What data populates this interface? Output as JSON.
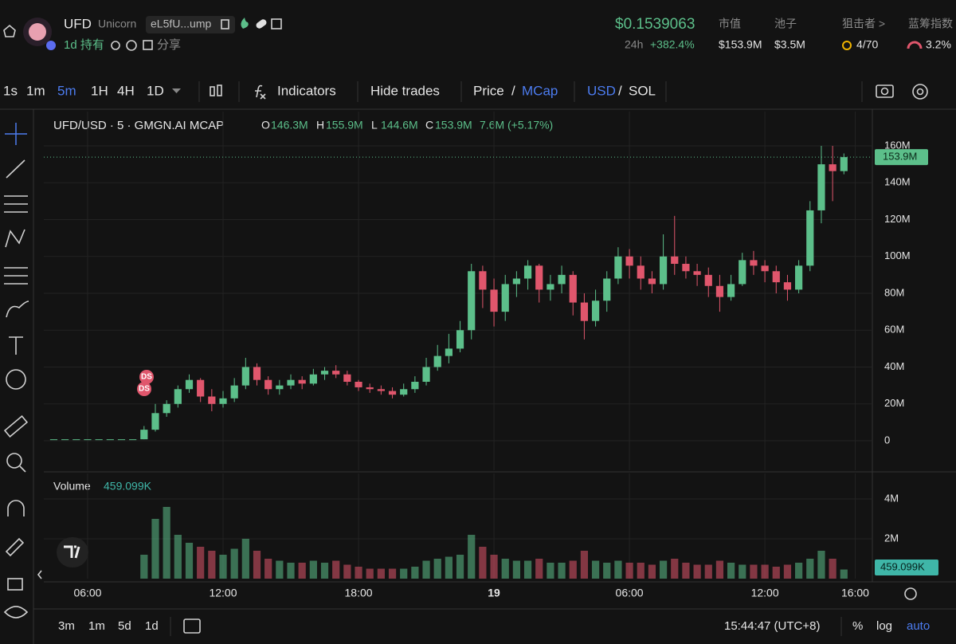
{
  "chart_data": {
    "type": "candlestick",
    "title": "UFD/USD · 5 · GMGN.AI MCAP",
    "ohlc": [
      {
        "key": "O",
        "value": "146.3M"
      },
      {
        "key": "H",
        "value": "155.9M"
      },
      {
        "key": "L",
        "value": "144.6M"
      },
      {
        "key": "C",
        "value": "153.9M"
      }
    ],
    "change": "7.6M (+5.17%)",
    "up_color": "#5cbf8a",
    "down_color": "#e0566c",
    "xlim": [
      4.06,
      40.76
    ],
    "xticks": [
      {
        "value": 6,
        "label": "06:00"
      },
      {
        "value": 12,
        "label": "12:00"
      },
      {
        "value": 18,
        "label": "18:00"
      },
      {
        "value": 24,
        "label": "19"
      },
      {
        "value": 30,
        "label": "06:00"
      },
      {
        "value": 36,
        "label": "12:00"
      },
      {
        "value": 40,
        "label": "16:00"
      }
    ],
    "ylim": [
      -16,
      178.6
    ],
    "yticks": [
      0,
      {
        "value": 20,
        "label": "20M"
      },
      {
        "value": 40,
        "label": "40M"
      },
      {
        "value": 60,
        "label": "60M"
      },
      {
        "value": 80,
        "label": "80M"
      },
      {
        "value": 100,
        "label": "100M"
      },
      {
        "value": 120,
        "label": "120M"
      },
      {
        "value": 140,
        "label": "140M"
      },
      {
        "value": 160,
        "label": "160M"
      }
    ],
    "grid": true,
    "price_tag": "153.9M",
    "volume_title": "Volume",
    "volume_tag": "459.099K",
    "volume_ylim": [
      0,
      5.04
    ],
    "volume_yticks": [
      {
        "value": 2,
        "label": "2M"
      },
      {
        "value": 4,
        "label": "4M"
      }
    ],
    "x": [
      4.5,
      5,
      5.5,
      6,
      6.5,
      7,
      7.5,
      8,
      8.5,
      9,
      9.5,
      10,
      10.5,
      11,
      11.5,
      12,
      12.5,
      13,
      13.5,
      14,
      14.5,
      15,
      15.5,
      16,
      16.5,
      17,
      17.5,
      18,
      18.5,
      19,
      19.5,
      20,
      20.5,
      21,
      21.5,
      22,
      22.5,
      23,
      23.5,
      24,
      24.5,
      25,
      25.5,
      26,
      26.5,
      27,
      27.5,
      28,
      28.5,
      29,
      29.5,
      30,
      30.5,
      31,
      31.5,
      32,
      32.5,
      33,
      33.5,
      34,
      34.5,
      35,
      35.5,
      36,
      36.5,
      37,
      37.5,
      38,
      38.5,
      39,
      39.5
    ],
    "open": [
      0.8,
      0.8,
      0.8,
      0.8,
      0.8,
      0.8,
      0.8,
      0.8,
      0.8,
      6,
      15,
      20,
      28,
      33,
      24,
      20,
      23,
      30,
      40,
      33,
      28,
      30,
      33,
      31,
      36,
      38,
      36,
      32,
      29,
      28,
      27,
      25,
      28,
      32,
      40,
      46,
      50,
      60,
      92,
      82,
      70,
      85,
      88,
      95,
      82,
      85,
      90,
      75,
      65,
      76,
      88,
      100,
      95,
      88,
      85,
      100,
      96,
      92,
      90,
      84,
      78,
      85,
      98,
      95,
      92,
      86,
      82,
      95,
      125,
      150,
      146.3
    ],
    "high": [
      0.8,
      0.8,
      0.8,
      0.8,
      0.8,
      0.8,
      0.8,
      0.8,
      8,
      20,
      22,
      30,
      36,
      34,
      28,
      27,
      34,
      45,
      42,
      35,
      33,
      36,
      35,
      39,
      40,
      41,
      38,
      33,
      31,
      30,
      29,
      31,
      35,
      45,
      52,
      58,
      65,
      96,
      95,
      88,
      90,
      92,
      98,
      96,
      90,
      95,
      92,
      80,
      82,
      92,
      105,
      104,
      100,
      92,
      112,
      122,
      100,
      96,
      94,
      90,
      90,
      102,
      103,
      98,
      95,
      90,
      98,
      130,
      160,
      160,
      155.9
    ],
    "low": [
      0.8,
      0.8,
      0.8,
      0.8,
      0.8,
      0.8,
      0.8,
      0.8,
      0.8,
      5,
      13,
      18,
      26,
      21,
      16,
      18,
      21,
      28,
      30,
      25,
      25,
      28,
      28,
      30,
      33,
      34,
      30,
      27,
      26,
      25,
      23,
      24,
      26,
      30,
      38,
      42,
      48,
      55,
      72,
      62,
      65,
      78,
      82,
      75,
      76,
      80,
      68,
      55,
      62,
      70,
      85,
      88,
      82,
      80,
      82,
      90,
      88,
      84,
      78,
      70,
      76,
      84,
      90,
      86,
      80,
      76,
      80,
      92,
      118,
      130,
      144.6
    ],
    "close": [
      0.8,
      0.8,
      0.8,
      0.8,
      0.8,
      0.8,
      0.8,
      0.8,
      6,
      15,
      20,
      28,
      33,
      24,
      20,
      23,
      30,
      40,
      33,
      28,
      30,
      33,
      31,
      36,
      38,
      36,
      32,
      29,
      28,
      27,
      25,
      28,
      32,
      40,
      46,
      50,
      60,
      92,
      82,
      70,
      85,
      88,
      95,
      82,
      85,
      90,
      75,
      65,
      76,
      88,
      100,
      95,
      88,
      85,
      100,
      96,
      92,
      90,
      84,
      78,
      85,
      98,
      95,
      92,
      86,
      82,
      95,
      125,
      150,
      146.3,
      153.9
    ],
    "volume": [
      0,
      0,
      0,
      0,
      0,
      0,
      0,
      0,
      1.2,
      3.0,
      3.6,
      2.2,
      1.8,
      1.6,
      1.4,
      1.2,
      1.5,
      2.0,
      1.4,
      1.0,
      0.9,
      0.8,
      0.8,
      0.9,
      0.8,
      0.9,
      0.7,
      0.6,
      0.5,
      0.5,
      0.5,
      0.5,
      0.6,
      0.9,
      1.0,
      1.1,
      1.2,
      2.2,
      1.6,
      1.2,
      1.0,
      0.9,
      0.9,
      1.0,
      0.8,
      0.8,
      0.9,
      1.4,
      0.9,
      0.8,
      0.9,
      0.8,
      0.8,
      0.7,
      0.9,
      1.0,
      0.8,
      0.7,
      0.7,
      0.9,
      0.8,
      0.7,
      0.7,
      0.7,
      0.6,
      0.7,
      0.8,
      1.0,
      1.4,
      1.0,
      0.459099
    ],
    "markers": [
      "DS",
      "DS"
    ]
  },
  "ui": {
    "name": "UFD",
    "tag": "Unicorn",
    "address": "eL5fU...ump",
    "hold": "1d 持有",
    "share": "分享",
    "price": "$0.1539063",
    "period": "24h",
    "period_change": "+382.4%",
    "stats": [
      {
        "label": "市值",
        "value": "$153.9M"
      },
      {
        "label": "池子",
        "value": "$3.5M"
      },
      {
        "label": "狙击者 >",
        "value": "4/70"
      },
      {
        "label": "蓝筹指数",
        "value": "3.2%"
      }
    ],
    "intervals": [
      "1s",
      "1m",
      "5m",
      "1H",
      "4H",
      "1D"
    ],
    "indicators": "Indicators",
    "hide_trades": "Hide trades",
    "price_mode": [
      "Price",
      "/",
      "MCap"
    ],
    "currency": [
      "USD",
      "/",
      "SOL"
    ],
    "ranges": [
      "3m",
      "1m",
      "5d",
      "1d"
    ],
    "clock": "15:44:47 (UTC+8)",
    "scale_modes": [
      "%",
      "log",
      "auto"
    ]
  }
}
